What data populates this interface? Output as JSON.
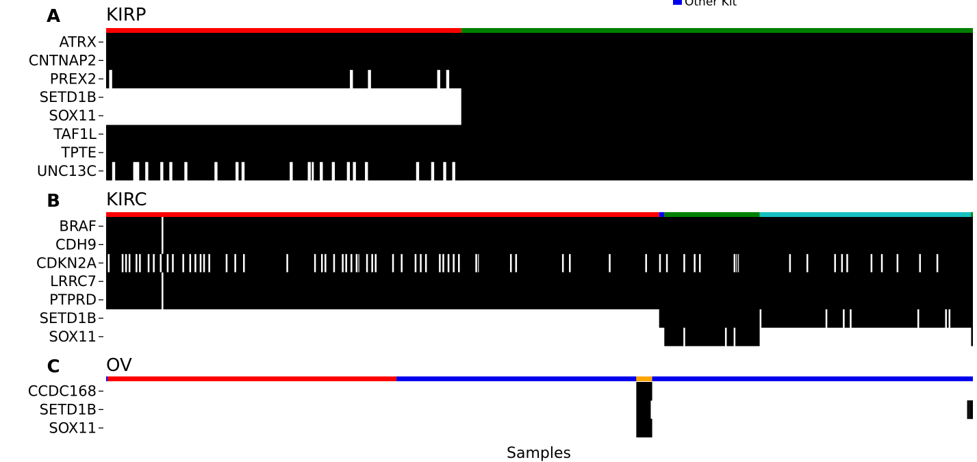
{
  "chart_data": {
    "type": "heatmap",
    "xlabel": "Samples",
    "legend": {
      "placement": "top-right",
      "entries": [
        {
          "label": "Other Kit",
          "color": "#0000ee"
        }
      ]
    },
    "panels": [
      {
        "letter": "A",
        "title": "KIRP",
        "n_samples": 288,
        "kit_bar": [
          {
            "from": 0,
            "to": 118,
            "color": "#ff0000"
          },
          {
            "from": 118,
            "to": 288,
            "color": "#007f00"
          }
        ],
        "genes": [
          "ATRX",
          "CNTNAP2",
          "PREX2",
          "SETD1B",
          "SOX11",
          "TAF1L",
          "TPTE",
          "UNC13C"
        ],
        "mutated_ranges": [
          [
            [
              0,
              288
            ]
          ],
          [
            [
              0,
              288
            ]
          ],
          [
            [
              0,
              1
            ],
            [
              2,
              81
            ],
            [
              82,
              87
            ],
            [
              88,
              110
            ],
            [
              111,
              113
            ],
            [
              114,
              288
            ]
          ],
          [
            [
              118,
              288
            ]
          ],
          [
            [
              118,
              288
            ]
          ],
          [
            [
              0,
              288
            ]
          ],
          [
            [
              0,
              288
            ]
          ],
          [
            [
              0,
              2
            ],
            [
              3,
              9
            ],
            [
              11,
              13
            ],
            [
              14,
              18
            ],
            [
              19,
              21
            ],
            [
              22,
              26
            ],
            [
              27,
              36
            ],
            [
              37,
              43
            ],
            [
              44,
              45
            ],
            [
              46,
              61
            ],
            [
              62,
              67
            ],
            [
              68,
              68
            ],
            [
              69,
              71
            ],
            [
              72,
              75
            ],
            [
              76,
              80
            ],
            [
              81,
              82
            ],
            [
              83,
              86
            ],
            [
              87,
              103
            ],
            [
              104,
              108
            ],
            [
              109,
              112
            ],
            [
              113,
              115
            ],
            [
              116,
              288
            ]
          ]
        ]
      },
      {
        "letter": "B",
        "title": "KIRC",
        "n_samples": 500,
        "kit_bar": [
          {
            "from": 0,
            "to": 319,
            "color": "#ff0000"
          },
          {
            "from": 319,
            "to": 322,
            "color": "#0000ee"
          },
          {
            "from": 322,
            "to": 377,
            "color": "#007f00"
          },
          {
            "from": 377,
            "to": 499,
            "color": "#17bfbf"
          },
          {
            "from": 499,
            "to": 500,
            "color": "#007f00"
          }
        ],
        "genes": [
          "BRAF",
          "CDH9",
          "CDKN2A",
          "LRRC7",
          "PTPRD",
          "SETD1B",
          "SOX11"
        ],
        "mutated_ranges": [
          [
            [
              0,
              32
            ],
            [
              33,
              500
            ]
          ],
          [
            [
              0,
              32
            ],
            [
              33,
              500
            ]
          ],
          [
            [
              0,
              1
            ],
            [
              2,
              9
            ],
            [
              10,
              11
            ],
            [
              12,
              13
            ],
            [
              14,
              17
            ],
            [
              18,
              19
            ],
            [
              20,
              24
            ],
            [
              25,
              27
            ],
            [
              28,
              31
            ],
            [
              32,
              35
            ],
            [
              36,
              38
            ],
            [
              39,
              44
            ],
            [
              45,
              48
            ],
            [
              49,
              51
            ],
            [
              52,
              54
            ],
            [
              55,
              56
            ],
            [
              57,
              59
            ],
            [
              60,
              69
            ],
            [
              70,
              74
            ],
            [
              75,
              79
            ],
            [
              80,
              104
            ],
            [
              105,
              120
            ],
            [
              121,
              124
            ],
            [
              125,
              126
            ],
            [
              127,
              131
            ],
            [
              132,
              136
            ],
            [
              137,
              138
            ],
            [
              139,
              141
            ],
            [
              142,
              144
            ],
            [
              145,
              145
            ],
            [
              146,
              150
            ],
            [
              151,
              153
            ],
            [
              154,
              155
            ],
            [
              156,
              165
            ],
            [
              166,
              170
            ],
            [
              171,
              178
            ],
            [
              179,
              181
            ],
            [
              182,
              184
            ],
            [
              185,
              192
            ],
            [
              193,
              194
            ],
            [
              195,
              197
            ],
            [
              198,
              200
            ],
            [
              201,
              203
            ],
            [
              204,
              213
            ],
            [
              214,
              214
            ],
            [
              215,
              233
            ],
            [
              234,
              236
            ],
            [
              237,
              263
            ],
            [
              264,
              267
            ],
            [
              268,
              290
            ],
            [
              291,
              311
            ],
            [
              312,
              319
            ],
            [
              320,
              323
            ],
            [
              324,
              333
            ],
            [
              334,
              339
            ],
            [
              340,
              342
            ],
            [
              343,
              362
            ],
            [
              363,
              363
            ],
            [
              364,
              364
            ],
            [
              365,
              394
            ],
            [
              395,
              404
            ],
            [
              405,
              420
            ],
            [
              421,
              424
            ],
            [
              425,
              427
            ],
            [
              428,
              441
            ],
            [
              442,
              447
            ],
            [
              448,
              456
            ],
            [
              457,
              469
            ],
            [
              470,
              479
            ],
            [
              480,
              500
            ]
          ],
          [
            [
              0,
              32
            ],
            [
              33,
              500
            ]
          ],
          [
            [
              0,
              32
            ],
            [
              33,
              500
            ]
          ],
          [
            [
              319,
              377
            ],
            [
              378,
              415
            ],
            [
              416,
              425
            ],
            [
              426,
              429
            ],
            [
              430,
              468
            ],
            [
              469,
              484
            ],
            [
              485,
              486
            ],
            [
              487,
              500
            ]
          ],
          [
            [
              322,
              333
            ],
            [
              334,
              357
            ],
            [
              358,
              362
            ],
            [
              363,
              377
            ],
            [
              499,
              500
            ]
          ]
        ]
      },
      {
        "letter": "C",
        "title": "OV",
        "n_samples": 600,
        "kit_bar": [
          {
            "from": 0,
            "to": 1,
            "color": "#0000ee"
          },
          {
            "from": 1,
            "to": 201,
            "color": "#ff0000"
          },
          {
            "from": 201,
            "to": 367,
            "color": "#0000ee"
          },
          {
            "from": 367,
            "to": 378,
            "color": "#ffa500"
          },
          {
            "from": 378,
            "to": 600,
            "color": "#0000ee"
          }
        ],
        "genes": [
          "CCDC168",
          "SETD1B",
          "SOX11"
        ],
        "mutated_ranges": [
          [
            [
              367,
              378
            ]
          ],
          [
            [
              367,
              377
            ],
            [
              596,
              597
            ],
            [
              597,
              598
            ],
            [
              598,
              600
            ]
          ],
          [
            [
              367,
              378
            ]
          ]
        ]
      }
    ]
  }
}
